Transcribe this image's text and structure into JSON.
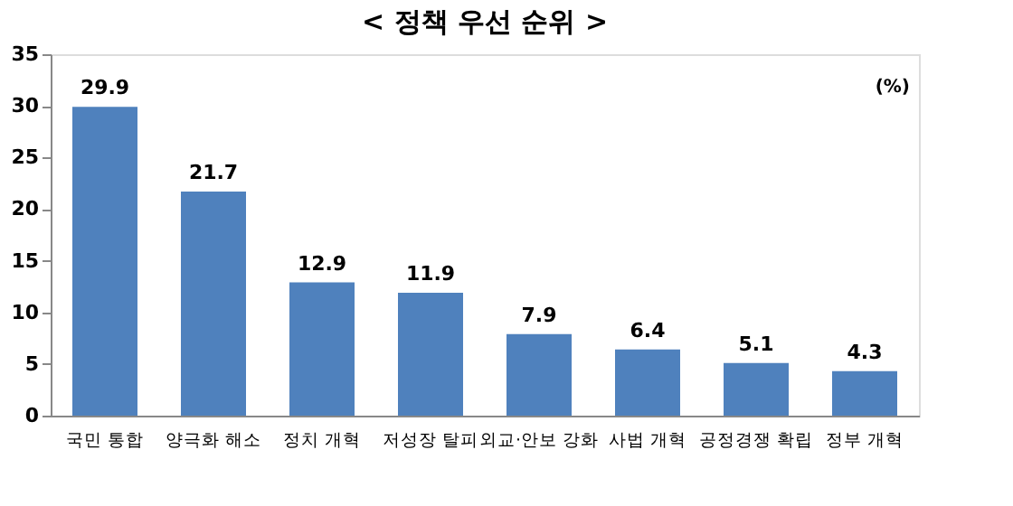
{
  "chart_data": {
    "type": "bar",
    "title": "< 정책 우선 순위 >",
    "categories": [
      "국민 통합",
      "양극화 해소",
      "정치 개혁",
      "저성장 탈피",
      "외교·안보 강화",
      "사법 개혁",
      "공정경쟁 확립",
      "정부 개혁"
    ],
    "values": [
      29.9,
      21.7,
      12.9,
      11.9,
      7.9,
      6.4,
      5.1,
      4.3
    ],
    "color": "#4f81bd",
    "ylim": [
      0,
      35
    ],
    "yticks": [
      0,
      5,
      10,
      15,
      20,
      25,
      30,
      35
    ],
    "data_labels": true,
    "grid": false,
    "annotations": [
      "(%)"
    ]
  }
}
